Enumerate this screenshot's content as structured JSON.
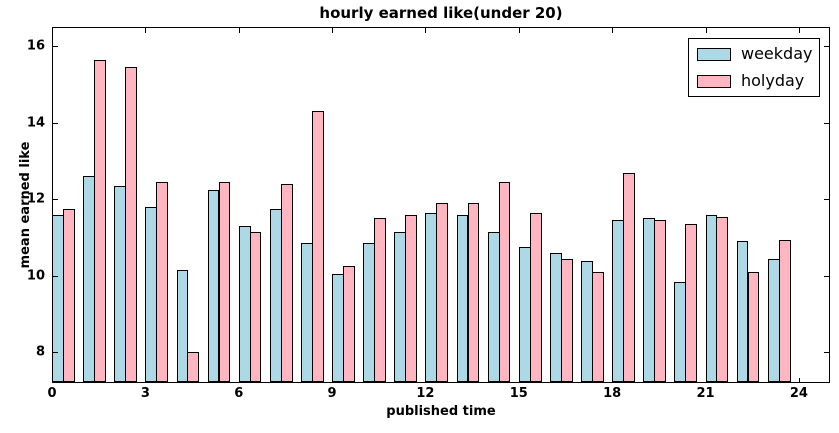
{
  "chart_data": {
    "type": "bar",
    "title": "hourly earned like(under 20)",
    "xlabel": "published time",
    "ylabel": "mean earned like",
    "categories": [
      0,
      1,
      2,
      3,
      4,
      5,
      6,
      7,
      8,
      9,
      10,
      11,
      12,
      13,
      14,
      15,
      16,
      17,
      18,
      19,
      20,
      21,
      22,
      23
    ],
    "series": [
      {
        "name": "weekday",
        "color": "#ADD8E6",
        "values": [
          11.6,
          12.6,
          12.35,
          11.8,
          10.15,
          12.25,
          11.3,
          11.75,
          10.85,
          10.05,
          10.85,
          11.15,
          11.65,
          11.6,
          11.15,
          10.75,
          10.6,
          10.4,
          11.45,
          11.5,
          9.85,
          11.6,
          10.9,
          10.45
        ]
      },
      {
        "name": "holyday",
        "color": "#FFB6C1",
        "values": [
          11.75,
          15.65,
          15.45,
          12.45,
          8.0,
          12.45,
          11.15,
          12.4,
          14.3,
          10.25,
          11.5,
          11.6,
          11.9,
          11.9,
          12.45,
          11.65,
          10.45,
          10.1,
          12.7,
          11.45,
          11.35,
          11.55,
          10.1,
          10.95
        ]
      }
    ],
    "bar_width": 0.35,
    "edge_color": "#000000",
    "xlim": [
      0,
      25
    ],
    "ylim": [
      7.2,
      16.5
    ],
    "xticks": [
      0,
      3,
      6,
      9,
      12,
      15,
      18,
      21,
      24
    ],
    "yticks": [
      8,
      10,
      12,
      14,
      16
    ],
    "grid": false,
    "legend": {
      "position": "upper right",
      "entries": [
        "weekday",
        "holyday"
      ]
    }
  }
}
